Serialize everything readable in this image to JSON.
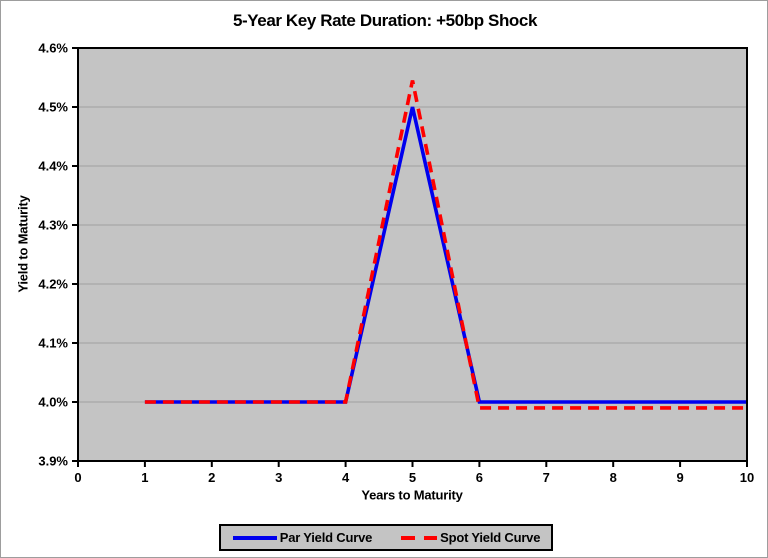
{
  "chart_data": {
    "type": "line",
    "title": "5-Year Key Rate Duration: +50bp Shock",
    "xlabel": "Years to Maturity",
    "ylabel": "Yield to Maturity",
    "xlim": [
      0,
      10
    ],
    "ylim": [
      3.9,
      4.6
    ],
    "x_tick_values": [
      0,
      1,
      2,
      3,
      4,
      5,
      6,
      7,
      8,
      9,
      10
    ],
    "x_tick_labels": [
      "0",
      "1",
      "2",
      "3",
      "4",
      "5",
      "6",
      "7",
      "8",
      "9",
      "10"
    ],
    "y_tick_values": [
      3.9,
      4.0,
      4.1,
      4.2,
      4.3,
      4.4,
      4.5,
      4.6
    ],
    "y_tick_labels": [
      "3.9%",
      "4.0%",
      "4.1%",
      "4.2%",
      "4.3%",
      "4.4%",
      "4.5%",
      "4.6%"
    ],
    "grid": true,
    "legend_position": "bottom",
    "x": [
      1,
      2,
      3,
      4,
      5,
      6,
      7,
      8,
      9,
      10
    ],
    "series": [
      {
        "name": "Par Yield Curve",
        "style": "solid",
        "color": "#0000ee",
        "values": [
          4.0,
          4.0,
          4.0,
          4.0,
          4.5,
          4.0,
          4.0,
          4.0,
          4.0,
          4.0
        ]
      },
      {
        "name": "Spot Yield Curve",
        "style": "dashed",
        "color": "#fe0000",
        "values": [
          4.0,
          4.0,
          4.0,
          4.0,
          4.545,
          3.99,
          3.99,
          3.99,
          3.99,
          3.99
        ]
      }
    ],
    "colors": {
      "plot_bg": "#c4c4c4",
      "gridline": "#9f9f9f",
      "axis": "#000000",
      "text": "#000000",
      "frame_border": "#9d9d9d",
      "page_bg": "#ffffff"
    }
  }
}
